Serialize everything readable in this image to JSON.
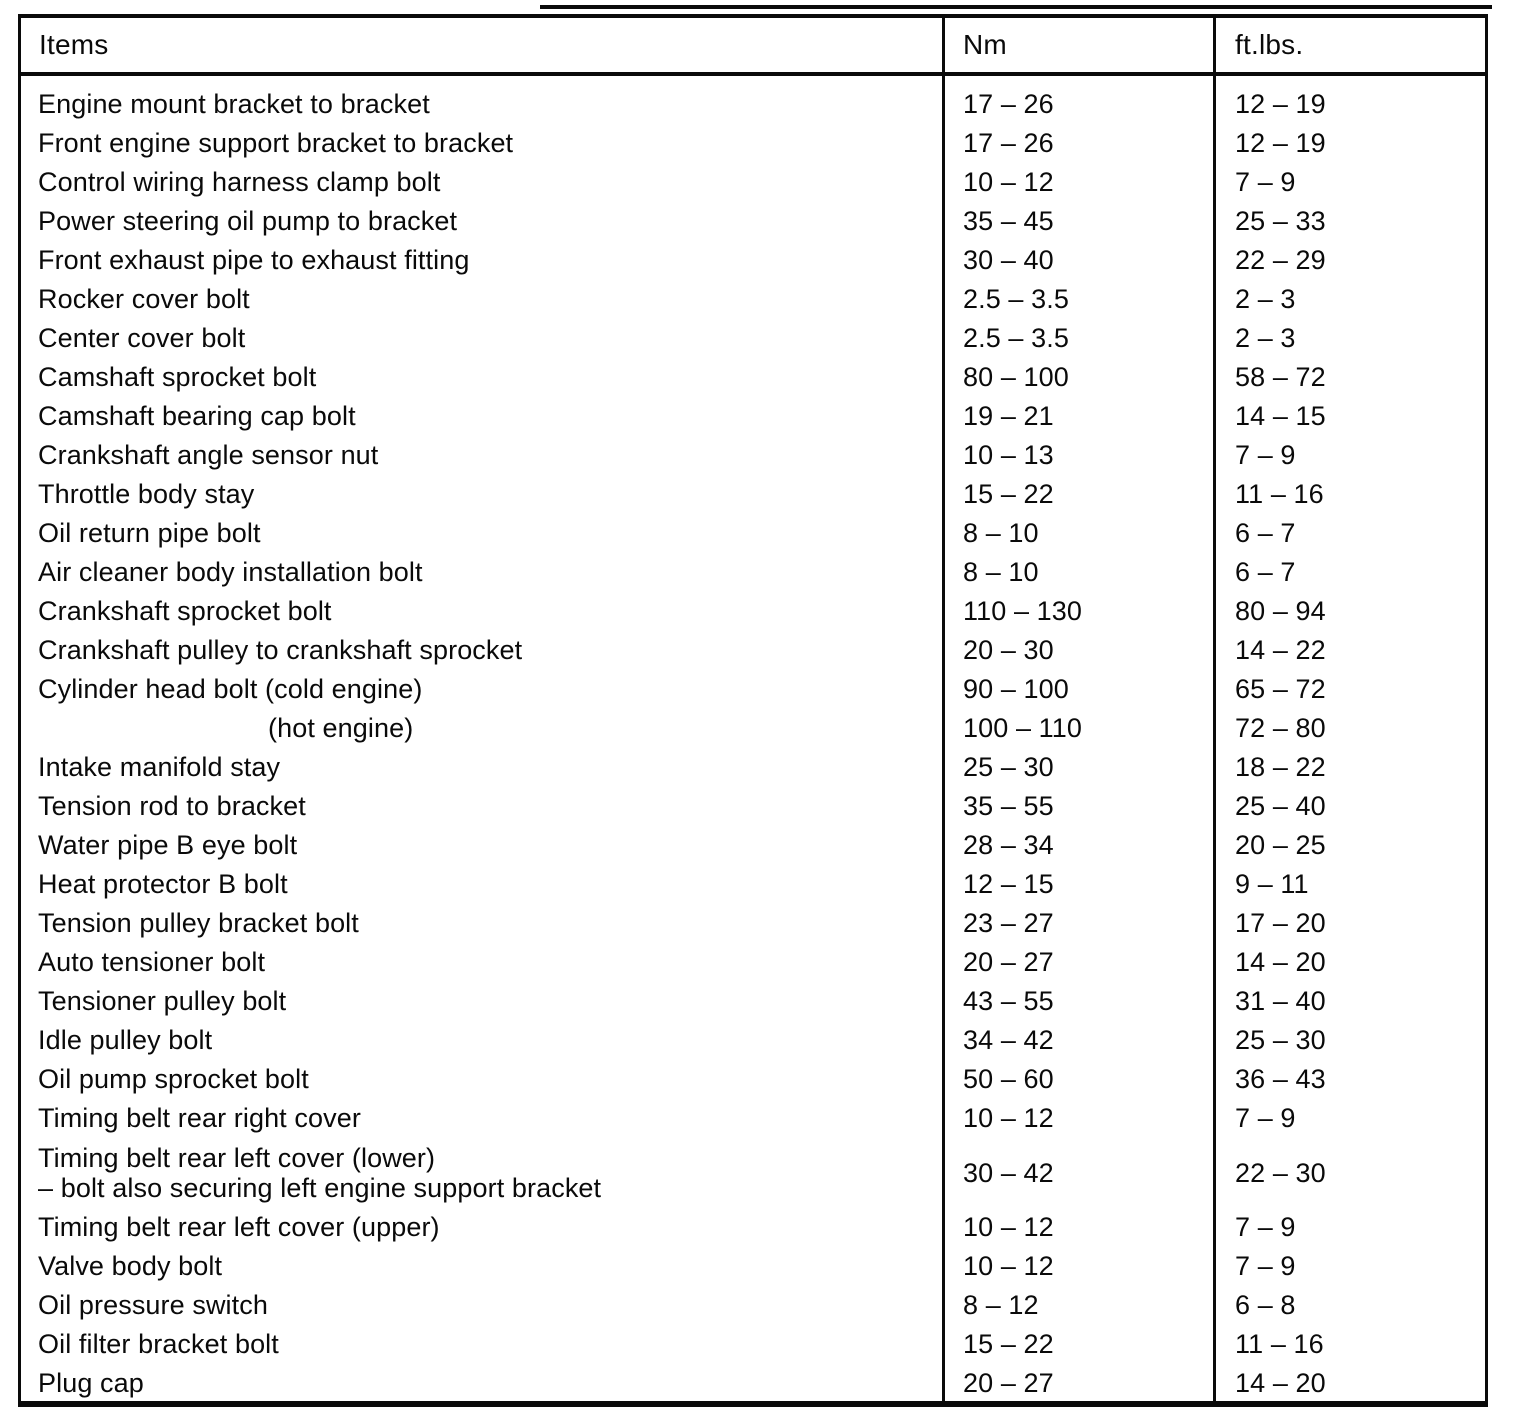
{
  "table": {
    "columns": [
      {
        "label": "Items"
      },
      {
        "label": "Nm"
      },
      {
        "label": "ft.lbs."
      }
    ],
    "rows": [
      {
        "item": "Engine mount bracket to bracket",
        "nm": "17 – 26",
        "ftlbs": "12 – 19"
      },
      {
        "item": "Front engine support bracket to bracket",
        "nm": "17 – 26",
        "ftlbs": "12 – 19"
      },
      {
        "item": "Control wiring harness clamp bolt",
        "nm": "10 – 12",
        "ftlbs": "7 – 9"
      },
      {
        "item": "Power steering oil pump to bracket",
        "nm": "35 – 45",
        "ftlbs": "25 – 33"
      },
      {
        "item": "Front exhaust pipe to exhaust fitting",
        "nm": "30 – 40",
        "ftlbs": "22 – 29"
      },
      {
        "item": "Rocker cover bolt",
        "nm": "2.5 – 3.5",
        "ftlbs": "2 – 3"
      },
      {
        "item": "Center cover bolt",
        "nm": "2.5 – 3.5",
        "ftlbs": "2 – 3"
      },
      {
        "item": "Camshaft sprocket bolt",
        "nm": "80 – 100",
        "ftlbs": "58 – 72"
      },
      {
        "item": "Camshaft bearing cap bolt",
        "nm": "19 – 21",
        "ftlbs": "14 – 15"
      },
      {
        "item": "Crankshaft angle sensor nut",
        "nm": "10 – 13",
        "ftlbs": "7 – 9"
      },
      {
        "item": "Throttle body stay",
        "nm": "15 – 22",
        "ftlbs": "11 – 16"
      },
      {
        "item": "Oil return pipe bolt",
        "nm": "8 – 10",
        "ftlbs": "6 – 7"
      },
      {
        "item": "Air cleaner body installation bolt",
        "nm": "8 – 10",
        "ftlbs": "6 – 7"
      },
      {
        "item": "Crankshaft sprocket bolt",
        "nm": "110 – 130",
        "ftlbs": "80 – 94"
      },
      {
        "item": "Crankshaft pulley to crankshaft sprocket",
        "nm": "20 – 30",
        "ftlbs": "14 – 22"
      },
      {
        "item": "Cylinder head bolt (cold engine)",
        "nm": "90 – 100",
        "ftlbs": "65 – 72"
      },
      {
        "item": "(hot engine)",
        "indent": true,
        "nm": "100 – 110",
        "ftlbs": "72 – 80"
      },
      {
        "item": "Intake manifold stay",
        "nm": "25 – 30",
        "ftlbs": "18 – 22"
      },
      {
        "item": "Tension rod to bracket",
        "nm": "35 – 55",
        "ftlbs": "25 – 40"
      },
      {
        "item": "Water pipe B eye bolt",
        "nm": "28 – 34",
        "ftlbs": "20 – 25"
      },
      {
        "item": "Heat protector B bolt",
        "nm": "12 – 15",
        "ftlbs": "9 – 11"
      },
      {
        "item": "Tension pulley bracket bolt",
        "nm": "23 – 27",
        "ftlbs": "17 – 20"
      },
      {
        "item": "Auto tensioner bolt",
        "nm": "20 – 27",
        "ftlbs": "14 – 20"
      },
      {
        "item": "Tensioner pulley bolt",
        "nm": "43 – 55",
        "ftlbs": "31 – 40"
      },
      {
        "item": "Idle pulley bolt",
        "nm": "34 – 42",
        "ftlbs": "25 – 30"
      },
      {
        "item": "Oil pump sprocket bolt",
        "nm": "50 – 60",
        "ftlbs": "36 – 43"
      },
      {
        "item": "Timing belt rear right cover",
        "nm": "10 – 12",
        "ftlbs": "7 – 9"
      },
      {
        "item": "Timing belt rear left cover (lower)",
        "item_line2": "– bolt also securing left engine support bracket",
        "nm": "30 – 42",
        "ftlbs": "22 – 30"
      },
      {
        "item": "Timing belt rear left cover (upper)",
        "nm": "10 – 12",
        "ftlbs": "7 – 9"
      },
      {
        "item": "Valve body bolt",
        "nm": "10 – 12",
        "ftlbs": "7 – 9"
      },
      {
        "item": "Oil pressure switch",
        "nm": "8 – 12",
        "ftlbs": "6 – 8"
      },
      {
        "item": "Oil filter bracket bolt",
        "nm": "15 – 22",
        "ftlbs": "11 – 16"
      },
      {
        "item": "Plug cap",
        "nm": "20 – 27",
        "ftlbs": "14 – 20"
      }
    ]
  }
}
